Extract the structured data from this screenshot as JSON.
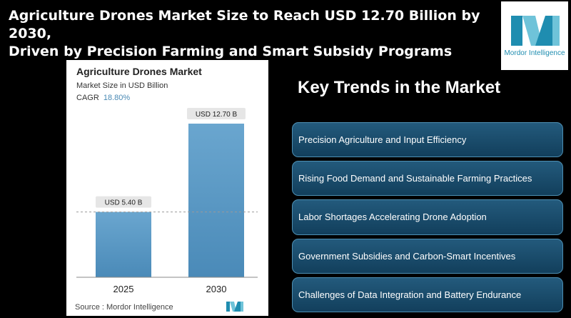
{
  "headline": {
    "line1": "Agriculture Drones Market Size to Reach USD 12.70 Billion by 2030,",
    "line2": "Driven by Precision Farming and Smart Subsidy Programs"
  },
  "brand": {
    "name": "Mordor Intelligence",
    "color": "#1f8db0"
  },
  "card": {
    "title": "Agriculture Drones Market",
    "subtitle": "Market Size in USD Billion",
    "cagr_label": "CAGR",
    "cagr_value": "18.80%",
    "source": "Source : Mordor Intelligence"
  },
  "chart_data": {
    "type": "bar",
    "title": "Agriculture Drones Market",
    "ylabel": "Market Size in USD Billion",
    "categories": [
      "2025",
      "2030"
    ],
    "values": [
      5.4,
      12.7
    ],
    "data_labels": [
      "USD 5.40 B",
      "USD 12.70 B"
    ],
    "bar_color": "#5b9bc8",
    "ylim": [
      0,
      12.7
    ],
    "grid": false
  },
  "trends": {
    "title": "Key Trends in the Market",
    "items": [
      "Precision Agriculture and Input Efficiency",
      "Rising Food Demand and Sustainable Farming Practices",
      "Labor Shortages Accelerating Drone Adoption",
      "Government Subsidies and Carbon-Smart Incentives",
      "Challenges of Data Integration and Battery Endurance"
    ]
  }
}
